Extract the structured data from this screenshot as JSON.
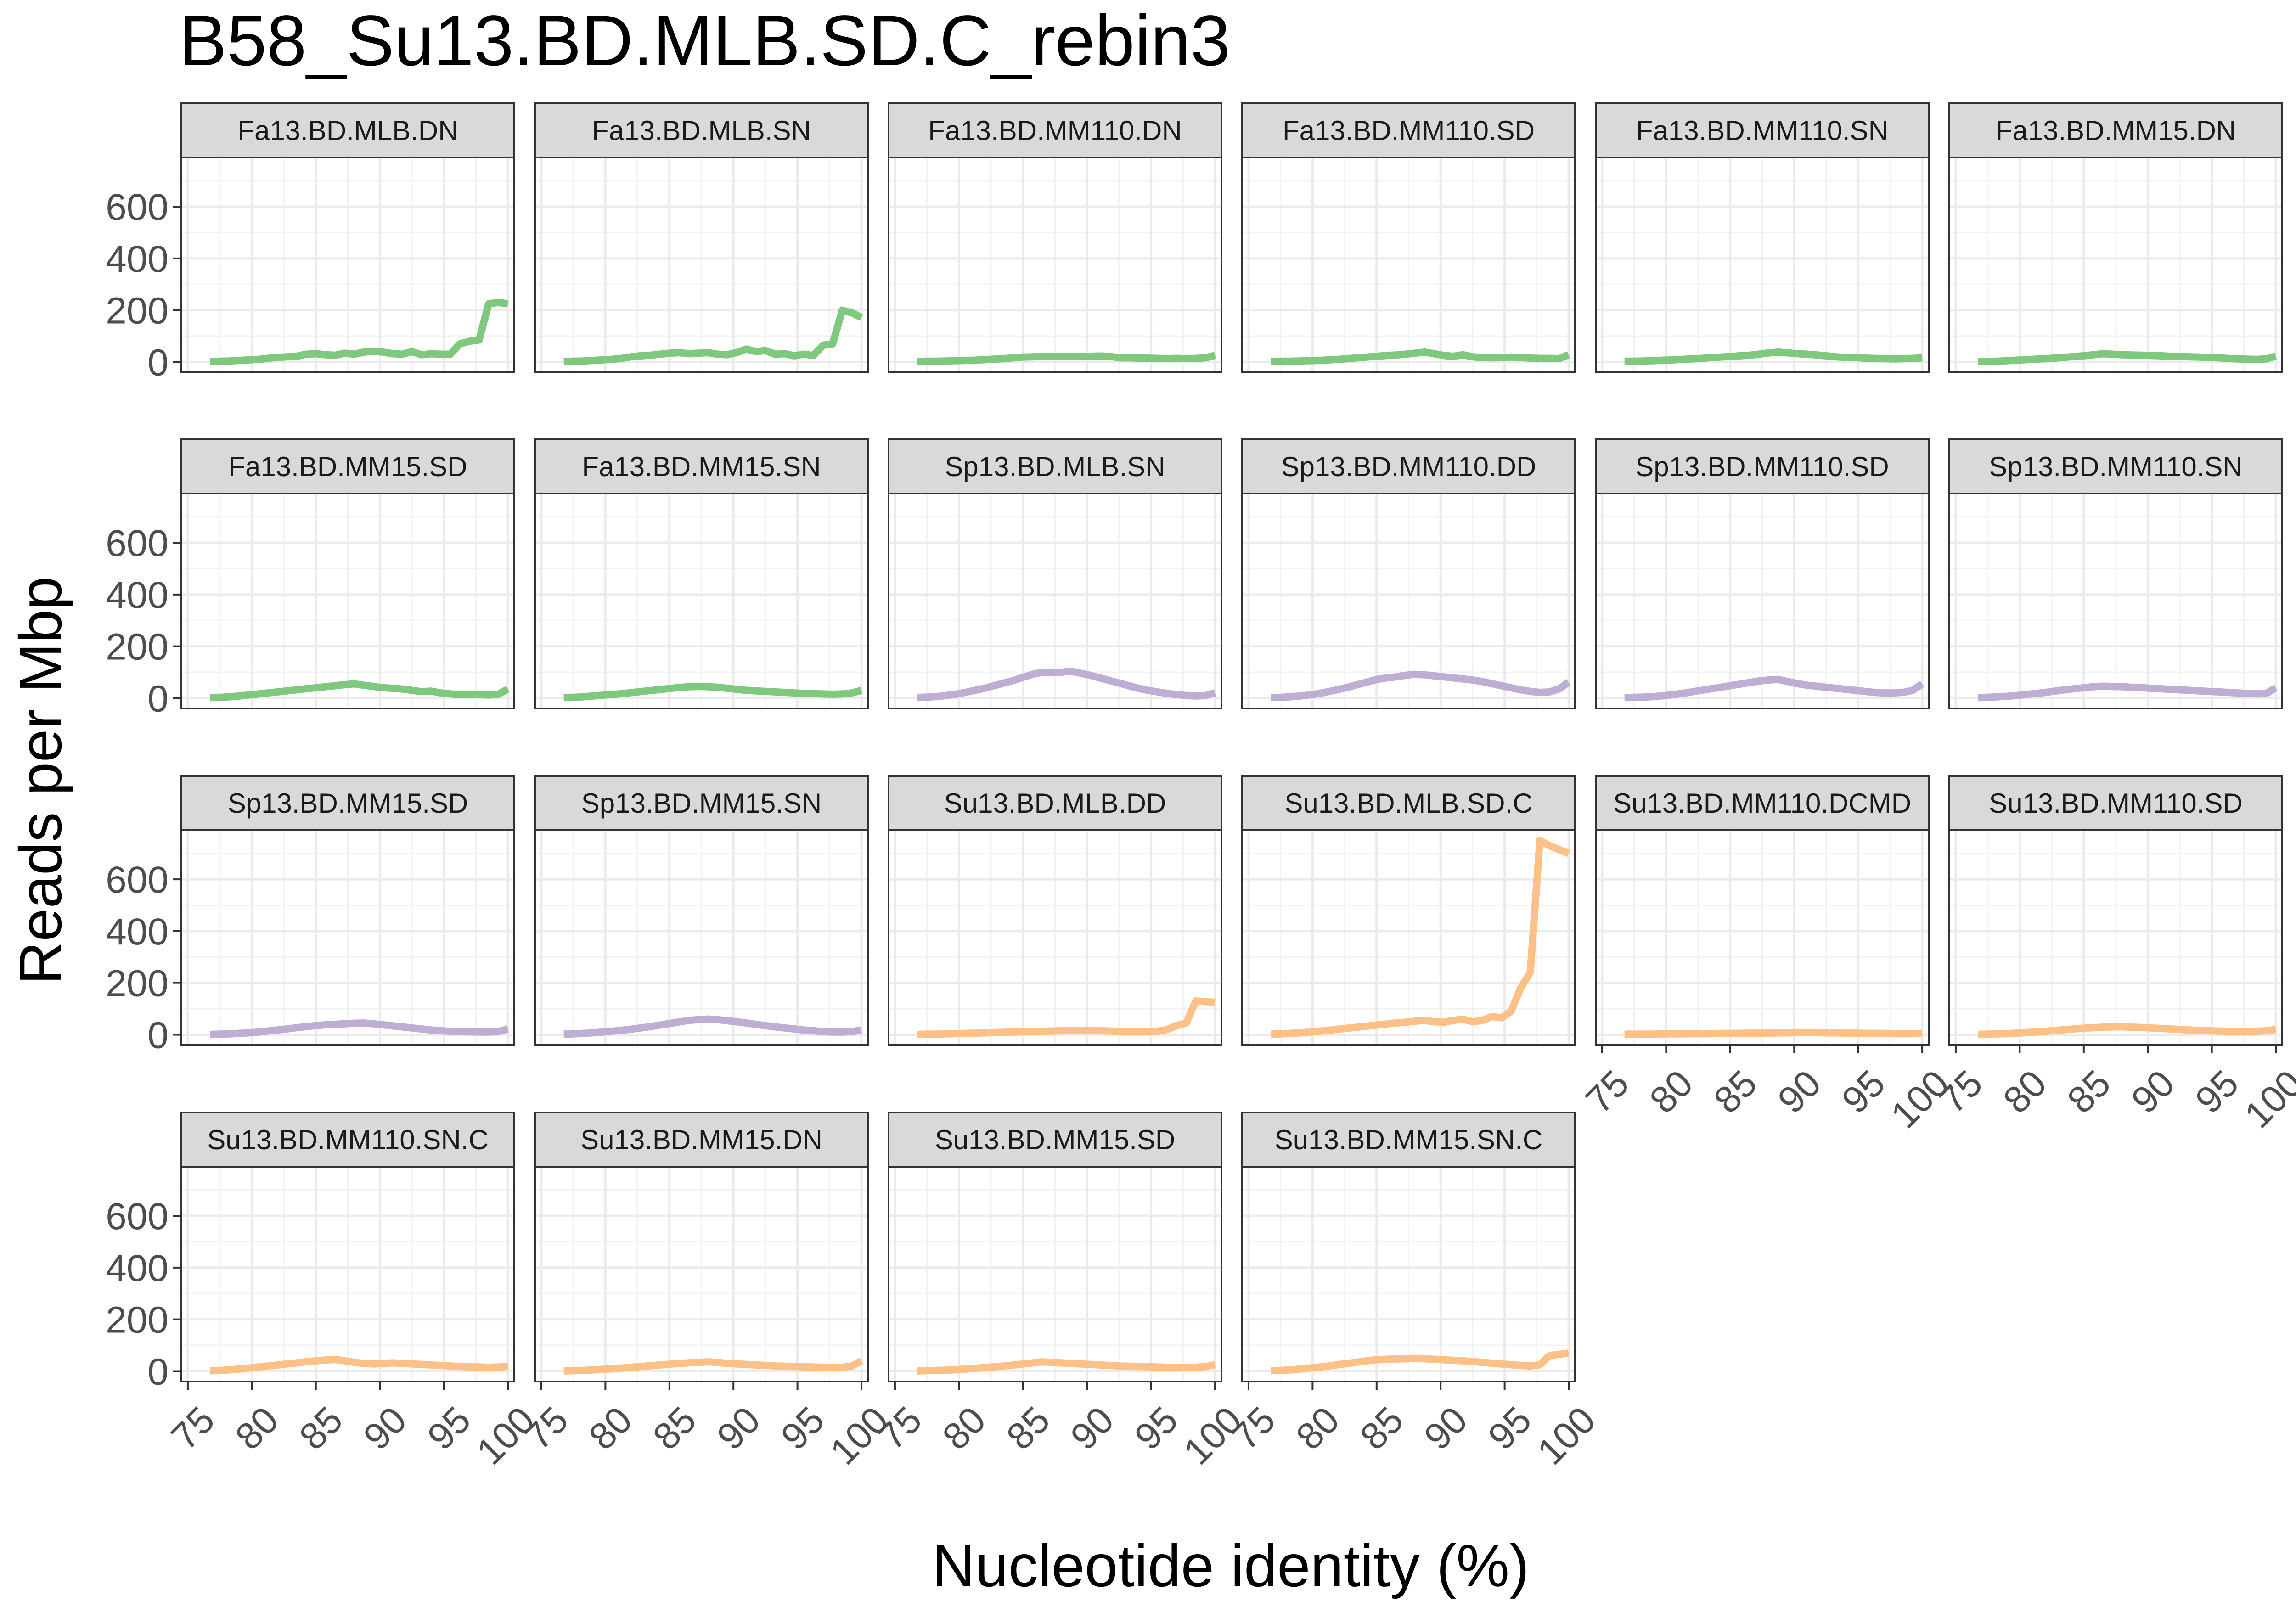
{
  "chart_data": {
    "type": "line",
    "title": "B58_Su13.BD.MLB.SD.C_rebin3",
    "xlabel": "Nucleotide identity (%)",
    "ylabel": "Reads per Mbp",
    "xlim": [
      74.5,
      100.5
    ],
    "ylim": [
      -40,
      790
    ],
    "x_ticks": [
      75,
      80,
      85,
      90,
      95,
      100
    ],
    "y_ticks": [
      0,
      200,
      400,
      600
    ],
    "grid": true,
    "legend": "none",
    "facet_columns": 6,
    "group_colors": {
      "Fa": "#7fc97f",
      "Sp": "#beaed4",
      "Su": "#fdc086"
    },
    "x": [
      76.75,
      77.5,
      78.25,
      79,
      79.75,
      80.5,
      81.25,
      82,
      82.75,
      83.5,
      84.25,
      85,
      85.75,
      86.5,
      87.25,
      88,
      88.75,
      89.5,
      90.25,
      91,
      91.75,
      92.5,
      93.25,
      94,
      94.75,
      95.5,
      96.25,
      97,
      97.75,
      98.5,
      99.25,
      100
    ],
    "series": [
      {
        "name": "Fa13.BD.MLB.DN",
        "group": "Fa",
        "values": [
          2,
          3,
          4,
          6,
          8,
          10,
          14,
          18,
          20,
          22,
          30,
          32,
          28,
          26,
          34,
          30,
          38,
          42,
          38,
          32,
          30,
          40,
          28,
          32,
          30,
          30,
          70,
          80,
          85,
          225,
          230,
          225
        ]
      },
      {
        "name": "Fa13.BD.MLB.SN",
        "group": "Fa",
        "values": [
          2,
          3,
          4,
          6,
          8,
          10,
          14,
          20,
          24,
          26,
          30,
          34,
          36,
          32,
          34,
          36,
          30,
          28,
          36,
          50,
          40,
          44,
          30,
          32,
          24,
          30,
          25,
          65,
          70,
          200,
          190,
          172
        ]
      },
      {
        "name": "Fa13.BD.MM110.DN",
        "group": "Fa",
        "values": [
          2,
          3,
          3,
          4,
          5,
          6,
          7,
          9,
          11,
          13,
          16,
          19,
          20,
          21,
          21,
          22,
          21,
          22,
          22,
          23,
          22,
          16,
          16,
          15,
          15,
          14,
          13,
          14,
          13,
          14,
          16,
          26
        ]
      },
      {
        "name": "Fa13.BD.MM110.SD",
        "group": "Fa",
        "values": [
          2,
          3,
          3,
          4,
          5,
          6,
          8,
          10,
          13,
          16,
          19,
          22,
          25,
          27,
          30,
          34,
          38,
          32,
          25,
          22,
          28,
          20,
          17,
          16,
          17,
          19,
          17,
          15,
          14,
          14,
          13,
          28
        ]
      },
      {
        "name": "Fa13.BD.MM110.SN",
        "group": "Fa",
        "values": [
          3,
          3,
          4,
          5,
          7,
          8,
          10,
          12,
          14,
          17,
          19,
          21,
          24,
          26,
          30,
          35,
          38,
          35,
          32,
          30,
          27,
          24,
          20,
          18,
          17,
          15,
          14,
          13,
          12,
          13,
          14,
          16
        ]
      },
      {
        "name": "Fa13.BD.MM15.DN",
        "group": "Fa",
        "values": [
          1,
          2,
          3,
          5,
          7,
          9,
          11,
          13,
          15,
          18,
          21,
          24,
          28,
          32,
          30,
          28,
          27,
          26,
          25,
          24,
          22,
          21,
          20,
          19,
          18,
          16,
          14,
          12,
          11,
          10,
          12,
          22
        ]
      },
      {
        "name": "Fa13.BD.MM15.SD",
        "group": "Fa",
        "values": [
          2,
          3,
          5,
          8,
          12,
          16,
          20,
          24,
          28,
          32,
          36,
          40,
          44,
          48,
          52,
          55,
          50,
          45,
          40,
          38,
          35,
          30,
          25,
          27,
          20,
          16,
          14,
          15,
          14,
          12,
          15,
          35
        ]
      },
      {
        "name": "Fa13.BD.MM15.SN",
        "group": "Fa",
        "values": [
          2,
          3,
          5,
          8,
          11,
          14,
          17,
          21,
          25,
          29,
          33,
          37,
          41,
          44,
          45,
          44,
          42,
          38,
          34,
          30,
          28,
          26,
          24,
          22,
          20,
          18,
          17,
          16,
          15,
          16,
          20,
          30
        ]
      },
      {
        "name": "Sp13.BD.MLB.SN",
        "group": "Sp",
        "values": [
          2,
          4,
          6,
          10,
          15,
          22,
          30,
          38,
          48,
          58,
          68,
          80,
          92,
          100,
          98,
          100,
          104,
          96,
          88,
          78,
          68,
          58,
          48,
          38,
          30,
          24,
          18,
          14,
          10,
          8,
          10,
          20
        ]
      },
      {
        "name": "Sp13.BD.MM110.DD",
        "group": "Sp",
        "values": [
          2,
          3,
          5,
          8,
          12,
          18,
          25,
          33,
          42,
          52,
          62,
          72,
          78,
          82,
          88,
          92,
          90,
          86,
          82,
          78,
          74,
          70,
          64,
          56,
          48,
          40,
          32,
          26,
          22,
          24,
          35,
          62
        ]
      },
      {
        "name": "Sp13.BD.MM110.SD",
        "group": "Sp",
        "values": [
          2,
          3,
          4,
          6,
          9,
          13,
          18,
          24,
          30,
          36,
          42,
          48,
          54,
          60,
          66,
          70,
          72,
          64,
          56,
          50,
          46,
          42,
          38,
          34,
          30,
          26,
          22,
          20,
          20,
          22,
          30,
          55
        ]
      },
      {
        "name": "Sp13.BD.MM110.SN",
        "group": "Sp",
        "values": [
          2,
          3,
          5,
          7,
          10,
          14,
          18,
          22,
          27,
          32,
          36,
          40,
          44,
          46,
          45,
          44,
          42,
          40,
          38,
          36,
          34,
          32,
          30,
          28,
          26,
          24,
          22,
          20,
          18,
          16,
          18,
          40
        ]
      },
      {
        "name": "Sp13.BD.MM15.SD",
        "group": "Sp",
        "values": [
          1,
          2,
          3,
          5,
          7,
          10,
          14,
          18,
          22,
          27,
          31,
          35,
          38,
          40,
          42,
          44,
          45,
          42,
          38,
          34,
          30,
          26,
          22,
          18,
          15,
          13,
          12,
          11,
          10,
          10,
          12,
          22
        ]
      },
      {
        "name": "Sp13.BD.MM15.SN",
        "group": "Sp",
        "values": [
          2,
          3,
          5,
          7,
          10,
          13,
          17,
          21,
          26,
          31,
          37,
          43,
          49,
          55,
          58,
          60,
          58,
          54,
          50,
          45,
          40,
          35,
          30,
          26,
          22,
          18,
          15,
          12,
          10,
          10,
          12,
          18
        ]
      },
      {
        "name": "Su13.BD.MLB.DD",
        "group": "Su",
        "values": [
          1,
          2,
          2,
          3,
          4,
          5,
          6,
          7,
          8,
          9,
          10,
          11,
          12,
          13,
          14,
          15,
          16,
          16,
          16,
          15,
          14,
          13,
          12,
          12,
          12,
          13,
          20,
          35,
          45,
          130,
          128,
          125
        ]
      },
      {
        "name": "Su13.BD.MLB.SD.C",
        "group": "Su",
        "values": [
          2,
          3,
          5,
          7,
          10,
          13,
          17,
          21,
          25,
          29,
          33,
          37,
          41,
          45,
          48,
          52,
          55,
          50,
          48,
          55,
          60,
          50,
          55,
          70,
          65,
          90,
          180,
          240,
          750,
          730,
          715,
          700
        ]
      },
      {
        "name": "Su13.BD.MM110.DCMD",
        "group": "Su",
        "values": [
          2,
          2,
          2,
          2,
          3,
          3,
          3,
          4,
          4,
          4,
          5,
          5,
          5,
          6,
          6,
          6,
          7,
          7,
          8,
          8,
          8,
          7,
          7,
          6,
          6,
          5,
          5,
          5,
          4,
          4,
          4,
          5
        ]
      },
      {
        "name": "Su13.BD.MM110.SD",
        "group": "Su",
        "values": [
          1,
          2,
          3,
          4,
          6,
          8,
          10,
          13,
          16,
          19,
          22,
          25,
          27,
          29,
          30,
          30,
          29,
          28,
          26,
          24,
          22,
          20,
          18,
          16,
          15,
          14,
          13,
          12,
          12,
          13,
          15,
          20
        ]
      },
      {
        "name": "Su13.BD.MM110.SN.C",
        "group": "Su",
        "values": [
          2,
          3,
          5,
          8,
          12,
          16,
          20,
          24,
          28,
          32,
          36,
          40,
          43,
          45,
          40,
          34,
          30,
          28,
          30,
          32,
          30,
          28,
          26,
          24,
          22,
          20,
          18,
          17,
          16,
          15,
          16,
          18
        ]
      },
      {
        "name": "Su13.BD.MM15.DN",
        "group": "Su",
        "values": [
          1,
          2,
          3,
          5,
          7,
          9,
          12,
          15,
          18,
          21,
          24,
          27,
          30,
          32,
          34,
          36,
          34,
          30,
          28,
          26,
          24,
          22,
          20,
          19,
          18,
          17,
          16,
          15,
          14,
          15,
          20,
          40
        ]
      },
      {
        "name": "Su13.BD.MM15.SD",
        "group": "Su",
        "values": [
          1,
          2,
          3,
          4,
          6,
          8,
          11,
          14,
          17,
          20,
          24,
          28,
          32,
          36,
          34,
          32,
          30,
          28,
          26,
          24,
          22,
          20,
          19,
          18,
          17,
          16,
          15,
          14,
          14,
          15,
          18,
          25
        ]
      },
      {
        "name": "Su13.BD.MM15.SN.C",
        "group": "Su",
        "values": [
          2,
          3,
          5,
          8,
          12,
          16,
          20,
          25,
          30,
          35,
          40,
          44,
          46,
          47,
          48,
          49,
          48,
          46,
          44,
          42,
          40,
          37,
          34,
          31,
          28,
          25,
          22,
          20,
          25,
          60,
          65,
          70
        ]
      }
    ]
  }
}
